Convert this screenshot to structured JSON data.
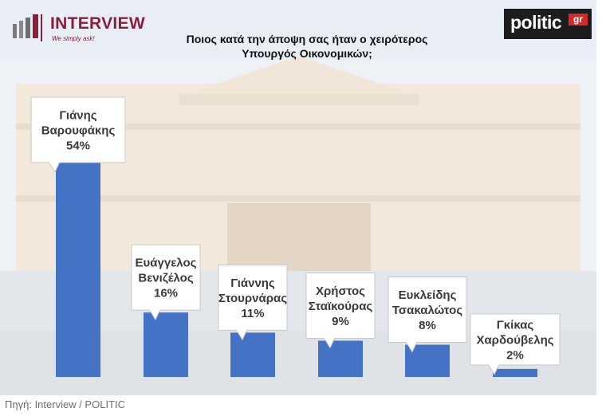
{
  "header": {
    "brand_left": "INTERVIEW",
    "brand_left_tagline": "We simply ask!",
    "brand_right": "politic",
    "brand_right_suffix": "gr",
    "title_line1": "Ποιος κατά την άποψη σας ήταν ο χειρότερος",
    "title_line2": "Υπουργός Οικονομικών;"
  },
  "footer": {
    "source": "Πηγή: Interview / POLITIC"
  },
  "colors": {
    "bar": "#4472c4",
    "brand": "#8a1e3c",
    "politic_red": "#d42a2a"
  },
  "chart_data": {
    "type": "bar",
    "title": "Ποιος κατά την άποψη σας ήταν ο χειρότερος Υπουργός Οικονομικών;",
    "categories": [
      [
        "Γιάνης",
        "Βαρουφάκης"
      ],
      [
        "Ευάγγελος",
        "Βενιζέλος"
      ],
      [
        "Γιάννης",
        "Στουρνάρας"
      ],
      [
        "Χρήστος",
        "Σταϊκούρας"
      ],
      [
        "Ευκλείδης",
        "Τσακαλώτος"
      ],
      [
        "Γκίκας",
        "Χαρδούβελης"
      ]
    ],
    "values": [
      54,
      16,
      11,
      9,
      8,
      2
    ],
    "value_labels": [
      "54%",
      "16%",
      "11%",
      "9%",
      "8%",
      "2%"
    ],
    "unit": "%",
    "ylim": [
      0,
      55
    ],
    "grid": false,
    "legend": "none"
  }
}
